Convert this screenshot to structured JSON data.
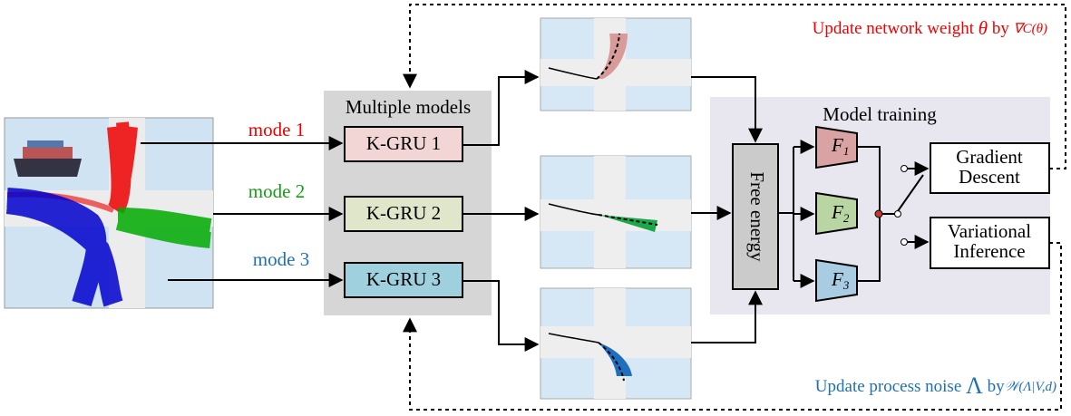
{
  "modes": [
    {
      "label": "mode 1",
      "model": "K-GRU 1"
    },
    {
      "label": "mode 2",
      "model": "K-GRU 2"
    },
    {
      "label": "mode 3",
      "model": "K-GRU 3"
    }
  ],
  "models_group": {
    "title": "Multiple models"
  },
  "training": {
    "title": "Model training",
    "free_energy": "Free energy",
    "networks": [
      {
        "base": "F",
        "sub": "1"
      },
      {
        "base": "F",
        "sub": "2"
      },
      {
        "base": "F",
        "sub": "3"
      }
    ],
    "gradient": [
      "Gradient",
      "Descent"
    ],
    "variational": [
      "Variational",
      "Inference"
    ]
  },
  "notes": {
    "weight": {
      "text": "Update network weight",
      "symbol": "θ",
      "by": "by",
      "expr": "∇C(θ)"
    },
    "noise": {
      "text": "Update process noise",
      "symbol": "Λ",
      "by": "by",
      "expr": "𝒲(Λ|V,d)"
    }
  }
}
